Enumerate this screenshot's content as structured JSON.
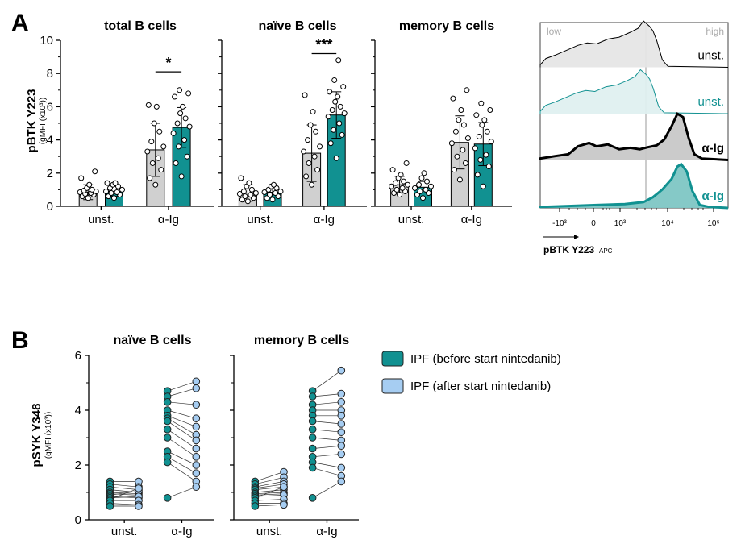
{
  "panels": {
    "a_letter": "A",
    "b_letter": "B"
  },
  "colors": {
    "grey_bar": "#d0d0d0",
    "teal": "#119191",
    "teal_dark": "#0e7f7f",
    "light_blue": "#a6cdf2",
    "axis": "#000000",
    "hist_grey_fill": "#e6e6e6",
    "hist_teal_fill": "#dff0f0",
    "hist_dark_fill": "#c8c8c8",
    "hist_teal_strong_fill": "#7ec6c4"
  },
  "chart_data": [
    {
      "id": "A1",
      "type": "bar",
      "title": "total B cells",
      "ylabel": "pBTK Y223",
      "ylabel_sub": "(gMFI (x10³))",
      "ylim": [
        0,
        10
      ],
      "yticks": [
        "0",
        "2",
        "4",
        "6",
        "8",
        "10"
      ],
      "categories": [
        "unst.",
        "α-Ig"
      ],
      "series": [
        {
          "fill": "grey",
          "values": [
            0.85,
            3.4
          ],
          "err": [
            0.45,
            1.6
          ],
          "points": [
            [
              0.5,
              0.6,
              0.7,
              0.75,
              0.8,
              0.85,
              0.9,
              0.95,
              1.0,
              1.1,
              1.3,
              1.7,
              2.1
            ],
            [
              1.3,
              1.7,
              2.2,
              2.6,
              2.9,
              3.3,
              3.6,
              3.9,
              4.5,
              5.0,
              6.0,
              6.1
            ]
          ]
        },
        {
          "fill": "teal",
          "values": [
            0.9,
            4.75
          ],
          "err": [
            0.3,
            1.2
          ],
          "points": [
            [
              0.5,
              0.6,
              0.7,
              0.8,
              0.85,
              0.9,
              1.0,
              1.1,
              1.2,
              1.3,
              1.4,
              1.4
            ],
            [
              1.8,
              2.6,
              3.0,
              3.6,
              4.0,
              4.4,
              4.8,
              5.0,
              5.3,
              5.6,
              6.0,
              6.6,
              6.8,
              7.0
            ]
          ]
        }
      ],
      "significance": {
        "label": "*",
        "category": "α-Ig",
        "y": 8.1
      }
    },
    {
      "id": "A2",
      "type": "bar",
      "title": "naïve B cells",
      "ylim": [
        0,
        10
      ],
      "categories": [
        "unst.",
        "α-Ig"
      ],
      "series": [
        {
          "fill": "grey",
          "values": [
            0.8,
            3.2
          ],
          "err": [
            0.5,
            1.7
          ],
          "points": [
            [
              0.3,
              0.4,
              0.5,
              0.6,
              0.7,
              0.75,
              0.8,
              0.9,
              1.0,
              1.2,
              1.4,
              1.7
            ],
            [
              1.3,
              1.8,
              2.2,
              2.6,
              3.0,
              3.3,
              3.6,
              4.0,
              4.5,
              4.9,
              5.7,
              6.7
            ]
          ]
        },
        {
          "fill": "teal",
          "values": [
            0.85,
            5.5
          ],
          "err": [
            0.3,
            1.4
          ],
          "points": [
            [
              0.4,
              0.5,
              0.6,
              0.7,
              0.8,
              0.85,
              0.9,
              1.0,
              1.1,
              1.2,
              1.3
            ],
            [
              2.9,
              3.8,
              4.3,
              4.6,
              5.0,
              5.4,
              5.6,
              5.8,
              6.0,
              6.3,
              6.6,
              6.9,
              7.2,
              7.6,
              8.8
            ]
          ]
        }
      ],
      "significance": {
        "label": "***",
        "category": "α-Ig",
        "y": 9.2
      }
    },
    {
      "id": "A3",
      "type": "bar",
      "title": "memory B cells",
      "ylim": [
        0,
        10
      ],
      "categories": [
        "unst.",
        "α-Ig"
      ],
      "series": [
        {
          "fill": "grey",
          "values": [
            1.3,
            3.85
          ],
          "err": [
            0.5,
            1.6
          ],
          "points": [
            [
              0.7,
              0.8,
              0.9,
              1.0,
              1.1,
              1.2,
              1.3,
              1.4,
              1.5,
              1.7,
              1.9,
              2.2,
              2.6
            ],
            [
              1.6,
              2.2,
              2.6,
              3.0,
              3.4,
              3.8,
              4.1,
              4.5,
              4.9,
              5.2,
              5.8,
              6.5,
              7.0
            ]
          ]
        },
        {
          "fill": "teal",
          "values": [
            1.15,
            3.75
          ],
          "err": [
            0.35,
            1.3
          ],
          "points": [
            [
              0.5,
              0.7,
              0.8,
              0.9,
              1.0,
              1.1,
              1.2,
              1.3,
              1.5,
              1.7,
              2.0
            ],
            [
              1.2,
              1.9,
              2.4,
              2.8,
              3.1,
              3.5,
              3.9,
              4.2,
              4.5,
              4.9,
              5.2,
              5.5,
              5.8,
              6.2
            ]
          ]
        }
      ]
    },
    {
      "id": "A4",
      "type": "histogram_overlay",
      "gate_low": "low",
      "gate_high": "high",
      "xlabel": "pBTK Y223",
      "xlabel_sub": "APC",
      "xticks": [
        "-10³",
        "0",
        "10³",
        "10⁴",
        "10⁵"
      ],
      "traces": [
        {
          "label": "unst.",
          "style": "thin-black",
          "label_color": "#000000"
        },
        {
          "label": "unst.",
          "style": "thin-teal",
          "label_color": "#119191"
        },
        {
          "label": "α-Ig",
          "style": "thick-black",
          "label_color": "#000000"
        },
        {
          "label": "α-Ig",
          "style": "thick-teal",
          "label_color": "#119191"
        }
      ]
    },
    {
      "id": "B1",
      "type": "paired_scatter",
      "title": "naïve B cells",
      "ylabel": "pSYK Y348",
      "ylabel_sub": "(gMFI (x10³))",
      "ylim": [
        0,
        6
      ],
      "yticks": [
        "0",
        "2",
        "4",
        "6"
      ],
      "categories": [
        "unst.",
        "α-Ig"
      ],
      "before": {
        "unst": [
          1.4,
          1.3,
          1.2,
          1.1,
          1.0,
          0.95,
          0.9,
          0.85,
          0.8,
          0.75,
          0.7,
          0.6,
          0.5
        ],
        "aig": [
          4.7,
          4.5,
          4.3,
          4.0,
          3.8,
          3.7,
          3.6,
          3.3,
          3.0,
          2.5,
          2.3,
          2.1,
          0.8
        ]
      },
      "after": {
        "unst": [
          1.4,
          1.2,
          1.1,
          1.0,
          0.95,
          0.9,
          1.05,
          0.8,
          0.85,
          1.15,
          0.7,
          0.55,
          0.5
        ],
        "aig": [
          5.05,
          4.8,
          4.2,
          3.7,
          3.4,
          3.1,
          2.9,
          2.6,
          2.3,
          2.0,
          1.7,
          1.4,
          1.2
        ]
      }
    },
    {
      "id": "B2",
      "type": "paired_scatter",
      "title": "memory B cells",
      "ylim": [
        0,
        6
      ],
      "categories": [
        "unst.",
        "α-Ig"
      ],
      "before": {
        "unst": [
          1.4,
          1.3,
          1.2,
          1.15,
          1.1,
          1.0,
          0.95,
          0.9,
          0.85,
          0.8,
          0.7,
          0.6,
          0.5
        ],
        "aig": [
          4.7,
          4.5,
          4.2,
          4.0,
          3.8,
          3.6,
          3.3,
          3.0,
          2.6,
          2.3,
          2.1,
          1.9,
          0.8
        ]
      },
      "after": {
        "unst": [
          1.75,
          1.55,
          1.4,
          1.3,
          1.2,
          1.1,
          1.0,
          0.95,
          0.9,
          1.2,
          0.75,
          0.6,
          0.55
        ],
        "aig": [
          5.45,
          4.6,
          4.3,
          4.0,
          3.8,
          3.5,
          3.2,
          2.9,
          2.7,
          2.4,
          1.9,
          1.6,
          1.4
        ]
      }
    }
  ],
  "legend": {
    "items": [
      {
        "label": "IPF (before start nintedanib)",
        "color": "#119191"
      },
      {
        "label": "IPF (after start nintedanib)",
        "color": "#a6cdf2"
      }
    ]
  }
}
